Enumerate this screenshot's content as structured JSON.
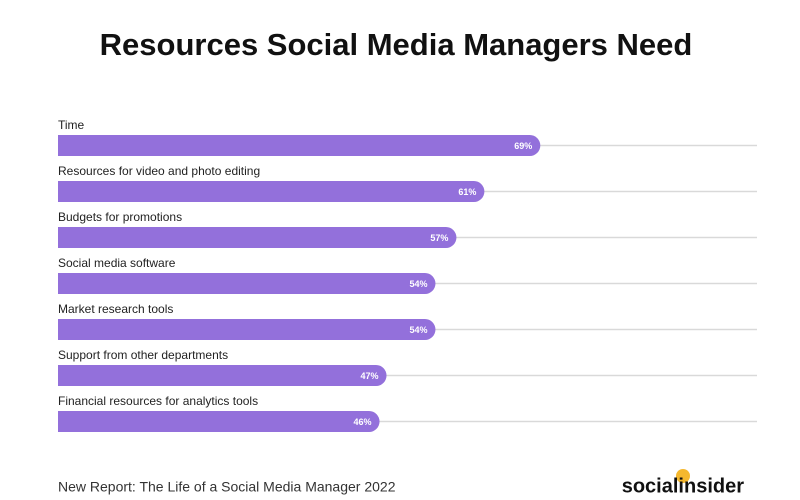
{
  "chart_data": {
    "type": "hbar",
    "title": "Resources Social Media Managers Need",
    "categories": [
      "Time",
      "Resources for video and photo editing",
      "Budgets for promotions",
      "Social media software",
      "Market research tools",
      "Support from other departments",
      "Financial resources for analytics tools"
    ],
    "values": [
      69,
      61,
      57,
      54,
      54,
      47,
      46
    ],
    "value_labels": [
      "69%",
      "61%",
      "57%",
      "54%",
      "54%",
      "47%",
      "46%"
    ],
    "color": "#9370db",
    "xlim": [
      0,
      100
    ],
    "footnote": "New Report: The Life of a Social Media Manager 2022",
    "brand": "socialinsider"
  }
}
